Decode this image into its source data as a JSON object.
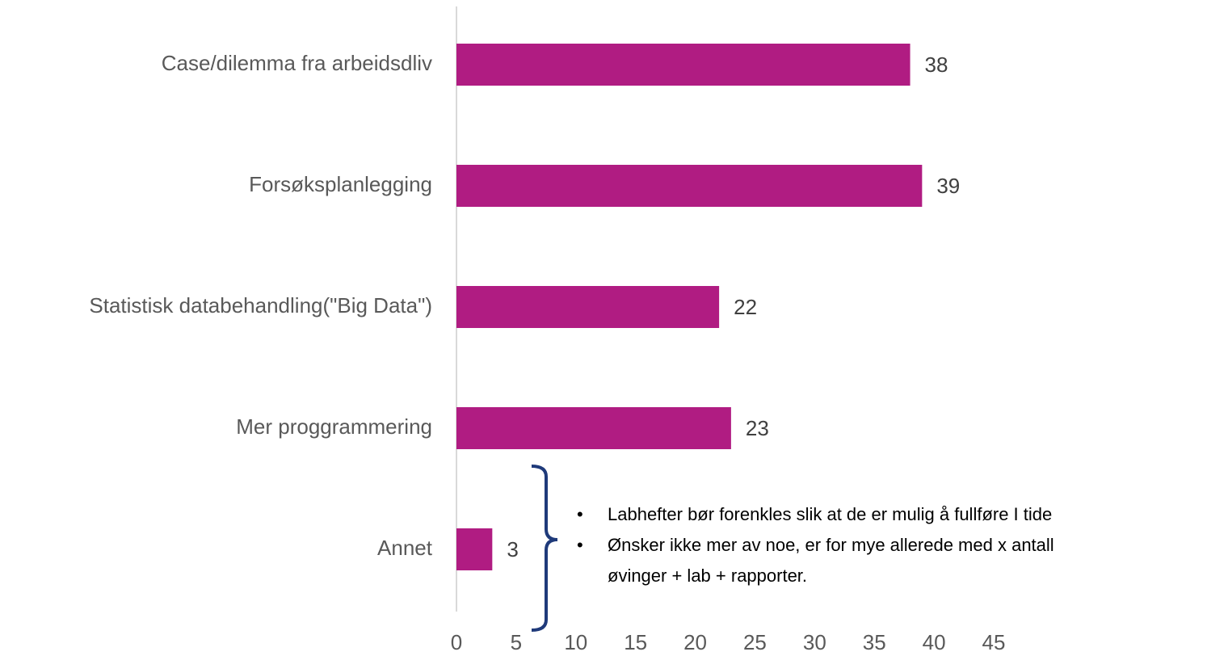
{
  "chart_data": {
    "type": "bar",
    "orientation": "horizontal",
    "categories": [
      "Case/dilemma fra arbeidsdliv",
      "Forsøksplanlegging",
      "Statistisk databehandling(\"Big Data\")",
      "Mer proggrammering",
      "Annet"
    ],
    "values": [
      38,
      39,
      22,
      23,
      3
    ],
    "color": "#b01c82",
    "xlim": [
      0,
      45
    ],
    "xticks": [
      0,
      5,
      10,
      15,
      20,
      25,
      30,
      35,
      40,
      45
    ],
    "grid": false,
    "annotations": [
      {
        "lines": [
          "Labhefter bør forenkles slik at de er mulig å fullføre I tide"
        ]
      },
      {
        "lines": [
          "Ønsker ikke mer av noe, er for mye allerede med x antall",
          "øvinger + lab + rapporter."
        ]
      }
    ]
  }
}
